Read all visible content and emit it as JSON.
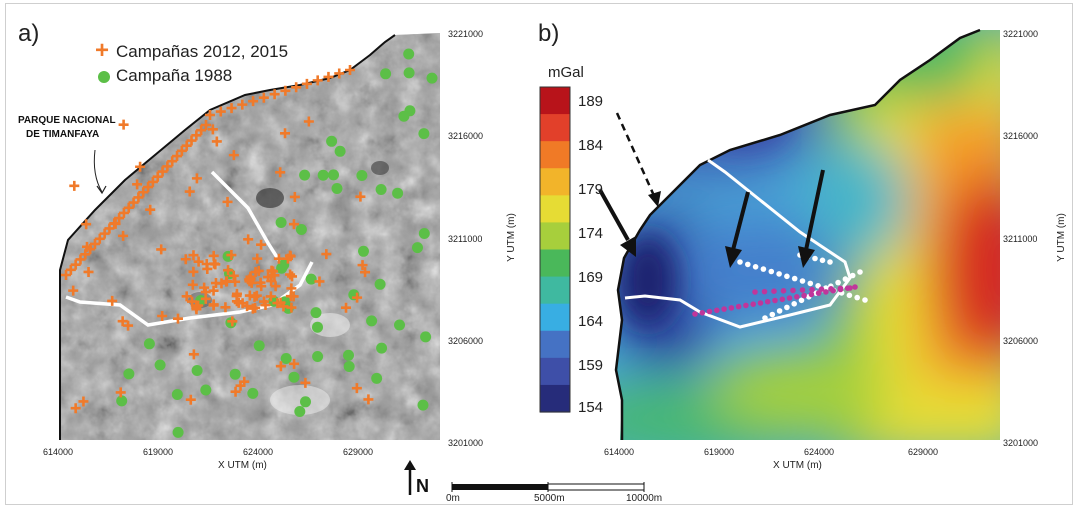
{
  "panels": {
    "a": {
      "label": "a)"
    },
    "b": {
      "label": "b)"
    }
  },
  "legend": {
    "items": [
      {
        "label": "Campañas 2012, 2015",
        "symbol": "plus",
        "color": "#f07a2a"
      },
      {
        "label": "Campaña 1988",
        "symbol": "dot",
        "color": "#5cbf47"
      }
    ]
  },
  "park_label": {
    "line1": "PARQUE NACIONAL",
    "line2": "DE TIMANFAYA"
  },
  "x_axis": {
    "title": "X UTM (m)",
    "ticks": [
      "614000",
      "619000",
      "624000",
      "629000"
    ]
  },
  "y_axis": {
    "title": "Y UTM (m)",
    "ticks": [
      "3221000",
      "3216000",
      "3211000",
      "3206000",
      "3201000"
    ]
  },
  "colorbar": {
    "unit": "mGal",
    "ticks": [
      "189",
      "184",
      "179",
      "174",
      "169",
      "164",
      "159",
      "154"
    ],
    "colors": [
      "#b8131a",
      "#e2402a",
      "#f07a26",
      "#f2b42a",
      "#e6dc34",
      "#a7cf3c",
      "#4ab85a",
      "#3fb9a0",
      "#38aee3",
      "#4572c4",
      "#3e4fa8",
      "#262c7a"
    ]
  },
  "north_arrow": {
    "label": "N"
  },
  "scalebar": {
    "labels": [
      "0m",
      "5000m",
      "10000m"
    ]
  },
  "colors": {
    "plus": "#f07a2a",
    "dot": "#5cbf47",
    "survey_dots_white": "#ffffff",
    "survey_dots_magenta": "#c0369b"
  }
}
